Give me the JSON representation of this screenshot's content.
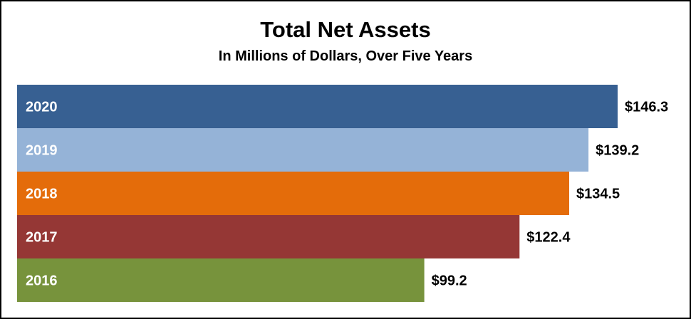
{
  "chart_data": {
    "type": "bar",
    "orientation": "horizontal",
    "title": "Total Net Assets",
    "subtitle": "In Millions of Dollars, Over Five Years",
    "categories": [
      "2020",
      "2019",
      "2018",
      "2017",
      "2016"
    ],
    "values": [
      146.3,
      139.2,
      134.5,
      122.4,
      99.2
    ],
    "value_labels": [
      "$146.3",
      "$139.2",
      "$134.5",
      "$122.4",
      "$99.2"
    ],
    "colors": [
      "#376092",
      "#95B3D7",
      "#E46C0A",
      "#953735",
      "#77933C"
    ],
    "xlim": [
      0,
      146.3
    ],
    "grid": false,
    "legend": "none"
  }
}
